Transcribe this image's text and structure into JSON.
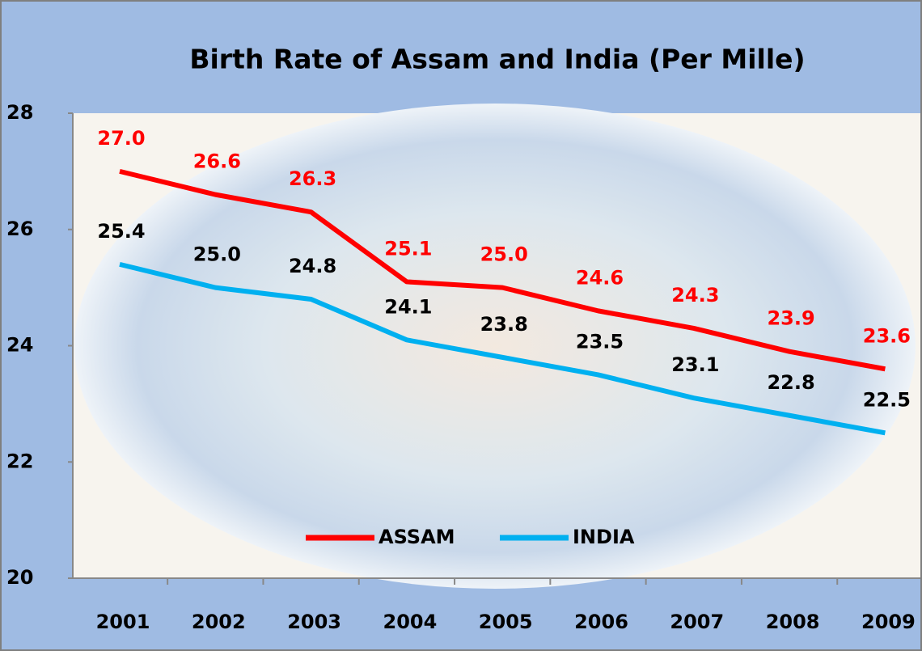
{
  "chart_data": {
    "type": "line",
    "title": "Birth Rate of Assam and India  (Per Mille)",
    "categories": [
      "2001",
      "2002",
      "2003",
      "2004",
      "2005",
      "2006",
      "2007",
      "2008",
      "2009"
    ],
    "series": [
      {
        "name": "ASSAM",
        "color": "#ff0000",
        "label_color": "#ff0000",
        "values": [
          27.0,
          26.6,
          26.3,
          25.1,
          25.0,
          24.6,
          24.3,
          23.9,
          23.6
        ],
        "value_labels": [
          "27.0",
          "26.6",
          "26.3",
          "25.1",
          "25.0",
          "24.6",
          "24.3",
          "23.9",
          "23.6"
        ]
      },
      {
        "name": "INDIA",
        "color": "#00b0f0",
        "label_color": "#000000",
        "values": [
          25.4,
          25.0,
          24.8,
          24.1,
          23.8,
          23.5,
          23.1,
          22.8,
          22.5
        ],
        "value_labels": [
          "25.4",
          "25.0",
          "24.8",
          "24.1",
          "23.8",
          "23.5",
          "23.1",
          "22.8",
          "22.5"
        ]
      }
    ],
    "ylim": [
      20,
      28
    ],
    "yticks": [
      20,
      22,
      24,
      26,
      28
    ],
    "legend": "bottom"
  }
}
